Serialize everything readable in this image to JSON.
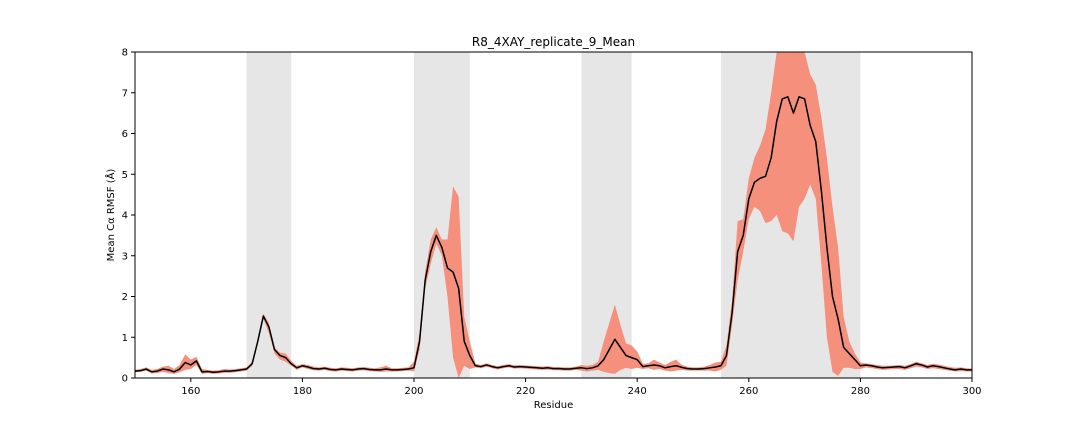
{
  "chart_data": {
    "type": "line",
    "title": "R8_4XAY_replicate_9_Mean",
    "xlabel": "Residue",
    "ylabel": "Mean Cα RMSF (Å)",
    "xlim": [
      150,
      300
    ],
    "ylim": [
      0,
      8
    ],
    "xticks": [
      160,
      180,
      200,
      220,
      240,
      260,
      280,
      300
    ],
    "yticks": [
      0,
      1,
      2,
      3,
      4,
      5,
      6,
      7,
      8
    ],
    "grid": false,
    "legend": "none",
    "colors": {
      "mean_line": "#000000",
      "band": "#f4907c",
      "region": "#e6e6e6"
    },
    "shaded_regions": [
      [
        170,
        178
      ],
      [
        200,
        210
      ],
      [
        230,
        239
      ],
      [
        255,
        280
      ]
    ],
    "series": [
      {
        "x": [
          150,
          151,
          152,
          153,
          154,
          155,
          156,
          157,
          158,
          159,
          160,
          161,
          162,
          163,
          164,
          165,
          166,
          167,
          168,
          169,
          170,
          171,
          172,
          173,
          174,
          175,
          176,
          177,
          178,
          179,
          180,
          181,
          182,
          183,
          184,
          185,
          186,
          187,
          188,
          189,
          190,
          191,
          192,
          193,
          194,
          195,
          196,
          197,
          198,
          199,
          200,
          201,
          202,
          203,
          204,
          205,
          206,
          207,
          208,
          209,
          210,
          211,
          212,
          213,
          214,
          215,
          216,
          217,
          218,
          219,
          220,
          221,
          222,
          223,
          224,
          225,
          226,
          227,
          228,
          229,
          230,
          231,
          232,
          233,
          234,
          235,
          236,
          237,
          238,
          239,
          240,
          241,
          242,
          243,
          244,
          245,
          246,
          247,
          248,
          249,
          250,
          251,
          252,
          253,
          254,
          255,
          256,
          257,
          258,
          259,
          260,
          261,
          262,
          263,
          264,
          265,
          266,
          267,
          268,
          269,
          270,
          271,
          272,
          273,
          274,
          275,
          276,
          277,
          278,
          279,
          280,
          281,
          282,
          283,
          284,
          285,
          286,
          287,
          288,
          289,
          290,
          291,
          292,
          293,
          294,
          295,
          296,
          297,
          298,
          299,
          300
        ],
        "mean": [
          0.17,
          0.18,
          0.22,
          0.15,
          0.17,
          0.22,
          0.2,
          0.15,
          0.22,
          0.38,
          0.32,
          0.42,
          0.15,
          0.16,
          0.14,
          0.15,
          0.17,
          0.17,
          0.18,
          0.2,
          0.22,
          0.35,
          0.9,
          1.52,
          1.25,
          0.7,
          0.55,
          0.5,
          0.35,
          0.25,
          0.3,
          0.27,
          0.23,
          0.22,
          0.24,
          0.21,
          0.2,
          0.22,
          0.21,
          0.2,
          0.22,
          0.23,
          0.21,
          0.2,
          0.2,
          0.22,
          0.2,
          0.2,
          0.21,
          0.22,
          0.25,
          0.9,
          2.4,
          3.1,
          3.5,
          3.2,
          2.7,
          2.6,
          2.2,
          0.9,
          0.55,
          0.3,
          0.28,
          0.32,
          0.28,
          0.25,
          0.28,
          0.3,
          0.27,
          0.28,
          0.27,
          0.26,
          0.25,
          0.24,
          0.25,
          0.23,
          0.23,
          0.22,
          0.22,
          0.24,
          0.25,
          0.23,
          0.25,
          0.3,
          0.45,
          0.7,
          0.95,
          0.75,
          0.55,
          0.5,
          0.45,
          0.28,
          0.3,
          0.32,
          0.3,
          0.25,
          0.28,
          0.3,
          0.26,
          0.23,
          0.22,
          0.22,
          0.23,
          0.25,
          0.27,
          0.3,
          0.55,
          1.6,
          3.1,
          3.5,
          4.4,
          4.8,
          4.9,
          4.95,
          5.4,
          6.3,
          6.85,
          6.9,
          6.5,
          6.9,
          6.85,
          6.2,
          5.8,
          4.6,
          3.2,
          2.0,
          1.45,
          0.75,
          0.6,
          0.45,
          0.3,
          0.32,
          0.3,
          0.27,
          0.25,
          0.26,
          0.27,
          0.28,
          0.25,
          0.3,
          0.35,
          0.32,
          0.27,
          0.3,
          0.28,
          0.25,
          0.22,
          0.2,
          0.22,
          0.2,
          0.2
        ],
        "upper": [
          0.2,
          0.22,
          0.26,
          0.2,
          0.22,
          0.28,
          0.3,
          0.22,
          0.32,
          0.58,
          0.45,
          0.52,
          0.22,
          0.2,
          0.18,
          0.19,
          0.22,
          0.21,
          0.22,
          0.24,
          0.26,
          0.4,
          0.95,
          1.58,
          1.35,
          0.75,
          0.62,
          0.6,
          0.42,
          0.3,
          0.34,
          0.32,
          0.28,
          0.26,
          0.28,
          0.25,
          0.24,
          0.26,
          0.25,
          0.24,
          0.26,
          0.27,
          0.25,
          0.24,
          0.26,
          0.3,
          0.24,
          0.24,
          0.25,
          0.26,
          0.4,
          1.1,
          2.6,
          3.4,
          3.7,
          3.4,
          3.4,
          4.7,
          4.45,
          1.5,
          0.9,
          0.35,
          0.32,
          0.36,
          0.32,
          0.29,
          0.32,
          0.34,
          0.31,
          0.32,
          0.31,
          0.3,
          0.29,
          0.28,
          0.29,
          0.27,
          0.27,
          0.26,
          0.26,
          0.28,
          0.32,
          0.3,
          0.32,
          0.4,
          0.9,
          1.35,
          1.8,
          1.3,
          0.85,
          0.8,
          0.65,
          0.35,
          0.36,
          0.45,
          0.38,
          0.32,
          0.4,
          0.45,
          0.32,
          0.28,
          0.26,
          0.26,
          0.28,
          0.32,
          0.38,
          0.4,
          0.8,
          1.9,
          3.85,
          3.9,
          4.9,
          5.4,
          5.7,
          6.1,
          7.0,
          8.0,
          8.0,
          8.0,
          8.0,
          8.0,
          8.0,
          7.45,
          7.2,
          6.4,
          5.4,
          4.2,
          3.2,
          1.5,
          0.9,
          0.6,
          0.38,
          0.36,
          0.34,
          0.32,
          0.3,
          0.3,
          0.31,
          0.32,
          0.3,
          0.34,
          0.4,
          0.36,
          0.32,
          0.35,
          0.33,
          0.3,
          0.27,
          0.25,
          0.26,
          0.24,
          0.23
        ],
        "lower": [
          0.14,
          0.15,
          0.18,
          0.11,
          0.12,
          0.15,
          0.12,
          0.1,
          0.14,
          0.2,
          0.22,
          0.32,
          0.1,
          0.12,
          0.1,
          0.11,
          0.13,
          0.13,
          0.14,
          0.16,
          0.18,
          0.3,
          0.85,
          1.46,
          1.1,
          0.6,
          0.45,
          0.4,
          0.3,
          0.2,
          0.26,
          0.22,
          0.19,
          0.18,
          0.2,
          0.17,
          0.16,
          0.18,
          0.17,
          0.16,
          0.18,
          0.19,
          0.17,
          0.16,
          0.15,
          0.16,
          0.16,
          0.16,
          0.17,
          0.18,
          0.16,
          0.7,
          2.2,
          2.8,
          3.3,
          3.0,
          2.0,
          0.5,
          0.0,
          0.3,
          0.22,
          0.26,
          0.24,
          0.28,
          0.24,
          0.21,
          0.24,
          0.26,
          0.23,
          0.24,
          0.23,
          0.22,
          0.21,
          0.2,
          0.21,
          0.19,
          0.19,
          0.18,
          0.18,
          0.2,
          0.18,
          0.16,
          0.18,
          0.2,
          0.15,
          0.12,
          0.1,
          0.2,
          0.25,
          0.22,
          0.25,
          0.22,
          0.24,
          0.2,
          0.22,
          0.18,
          0.16,
          0.18,
          0.2,
          0.18,
          0.18,
          0.18,
          0.18,
          0.18,
          0.16,
          0.2,
          0.3,
          1.3,
          2.4,
          3.1,
          3.9,
          4.2,
          4.1,
          3.8,
          3.85,
          4.0,
          3.6,
          3.55,
          3.35,
          4.2,
          4.4,
          4.75,
          4.4,
          2.8,
          1.0,
          0.15,
          0.05,
          0.25,
          0.25,
          0.22,
          0.22,
          0.26,
          0.24,
          0.22,
          0.2,
          0.21,
          0.22,
          0.22,
          0.2,
          0.24,
          0.28,
          0.26,
          0.22,
          0.24,
          0.22,
          0.2,
          0.18,
          0.16,
          0.17,
          0.16,
          0.16
        ]
      }
    ]
  }
}
